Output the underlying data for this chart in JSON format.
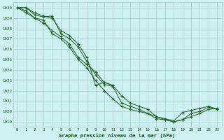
{
  "title": "Graphe pression niveau de la mer (hPa)",
  "bg_color": "#cdf0f0",
  "grid_color": "#aad4d4",
  "line_color": "#1a5c1a",
  "xlim": [
    -0.5,
    23.5
  ],
  "ylim": [
    1018.5,
    1030.5
  ],
  "yticks": [
    1019,
    1020,
    1021,
    1022,
    1023,
    1024,
    1025,
    1026,
    1027,
    1028,
    1029,
    1030
  ],
  "xticks": [
    0,
    1,
    2,
    3,
    4,
    5,
    6,
    7,
    8,
    9,
    10,
    11,
    12,
    13,
    14,
    15,
    16,
    17,
    18,
    19,
    20,
    21,
    22,
    23
  ],
  "series_full": [
    {
      "x": [
        0,
        1,
        2,
        3,
        4,
        5,
        6,
        7,
        8,
        9,
        10,
        11,
        12,
        13,
        14,
        15,
        16,
        17,
        18,
        19,
        20,
        21,
        22,
        23
      ],
      "y": [
        1030,
        1030,
        1029.5,
        1029.2,
        1029.0,
        1027.8,
        1027.3,
        1026.5,
        1025.2,
        1022.5,
        1022.8,
        1022.5,
        1021.5,
        1020.8,
        1020.5,
        1020.2,
        1019.5,
        1019.3,
        1019.1,
        1019.9,
        1020.1,
        1020.3,
        1020.5,
        1020.2
      ]
    },
    {
      "x": [
        0,
        1,
        2,
        3,
        4,
        5,
        6,
        7,
        8,
        9,
        10,
        11,
        12,
        13,
        14,
        15,
        16,
        17,
        18,
        19,
        20,
        21,
        22,
        23
      ],
      "y": [
        1030,
        1030,
        1029.3,
        1029.1,
        1029.2,
        1027.5,
        1027.0,
        1026.2,
        1024.8,
        1023.5,
        1022.6,
        1022.4,
        1020.8,
        1020.5,
        1020.2,
        1019.8,
        1019.3,
        1019.2,
        1019.0,
        1019.2,
        1019.8,
        1020.0,
        1020.4,
        1020.2
      ]
    },
    {
      "x": [
        0,
        1,
        2,
        3,
        4,
        5,
        6,
        7,
        8,
        9,
        10,
        11,
        12,
        13,
        14,
        15,
        16,
        17,
        18,
        19,
        20,
        21,
        22,
        23
      ],
      "y": [
        1030,
        1029.7,
        1029.0,
        1028.8,
        1027.5,
        1027.0,
        1026.2,
        1025.0,
        1024.2,
        1023.0,
        1022.0,
        1021.2,
        1020.5,
        1020.2,
        1020.0,
        1019.8,
        1019.5,
        1019.2,
        1019.0,
        1019.2,
        1019.5,
        1019.8,
        1020.2,
        1020.3
      ]
    },
    {
      "x": [
        0,
        1,
        2,
        3,
        4,
        5,
        6,
        7,
        8,
        9,
        10,
        11
      ],
      "y": [
        1030,
        1029.5,
        1029.0,
        1028.5,
        1027.8,
        1027.2,
        1026.5,
        1025.2,
        1024.5,
        1023.8,
        1022.8,
        1022.5
      ]
    }
  ]
}
